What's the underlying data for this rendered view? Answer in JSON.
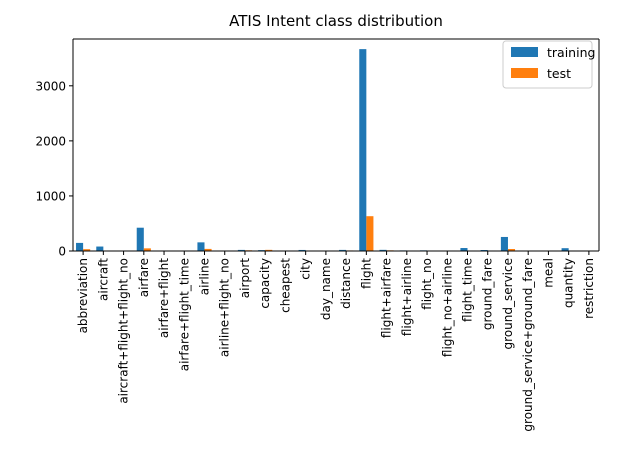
{
  "chart_data": {
    "type": "bar",
    "title": "ATIS Intent class distribution",
    "xlabel": "",
    "ylabel": "",
    "ylim": [
      0,
      3850
    ],
    "yticks": [
      0,
      1000,
      2000,
      3000
    ],
    "grid": false,
    "legend_position": "top-right",
    "categories": [
      "abbreviation",
      "aircraft",
      "aircraft+flight+flight_no",
      "airfare",
      "airfare+flight",
      "airfare+flight_time",
      "airline",
      "airline+flight_no",
      "airport",
      "capacity",
      "cheapest",
      "city",
      "day_name",
      "distance",
      "flight",
      "flight+airfare",
      "flight+airline",
      "flight_no",
      "flight_no+airline",
      "flight_time",
      "ground_fare",
      "ground_service",
      "ground_service+ground_fare",
      "meal",
      "quantity",
      "restriction"
    ],
    "series": [
      {
        "name": "training",
        "color": "#1f77b4",
        "values": [
          147,
          81,
          1,
          423,
          1,
          1,
          157,
          1,
          20,
          16,
          1,
          19,
          2,
          20,
          3666,
          21,
          11,
          12,
          2,
          54,
          18,
          255,
          1,
          6,
          51,
          6
        ]
      },
      {
        "name": "test",
        "color": "#ff7f0e",
        "values": [
          33,
          9,
          0,
          48,
          0,
          0,
          38,
          0,
          13,
          21,
          0,
          6,
          0,
          10,
          632,
          12,
          1,
          8,
          0,
          1,
          7,
          36,
          0,
          6,
          3,
          0
        ]
      }
    ]
  }
}
